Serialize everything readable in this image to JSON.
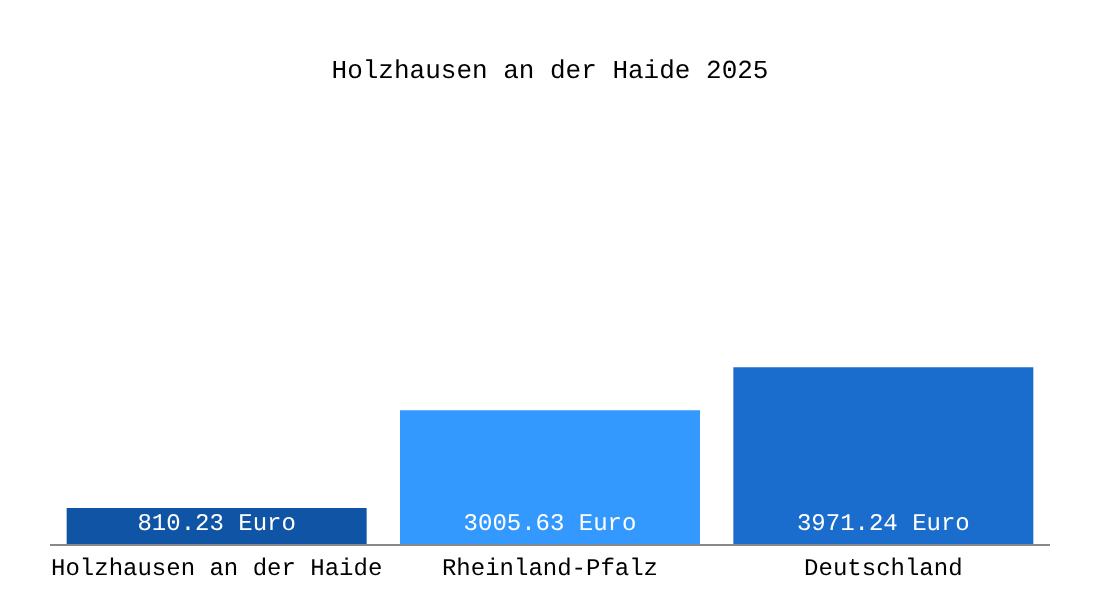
{
  "chart_data": {
    "type": "bar",
    "title": "Holzhausen an der Haide 2025",
    "categories": [
      "Holzhausen an der Haide",
      "Rheinland-Pfalz",
      "Deutschland"
    ],
    "values": [
      810.23,
      3005.63,
      3971.24
    ],
    "colors": [
      "#1055a5",
      "#3399ff",
      "#1a6dcc"
    ],
    "value_labels": [
      "810.23 Euro",
      "3005.63 Euro",
      "3971.24 Euro"
    ],
    "grid": false,
    "legend": false
  }
}
